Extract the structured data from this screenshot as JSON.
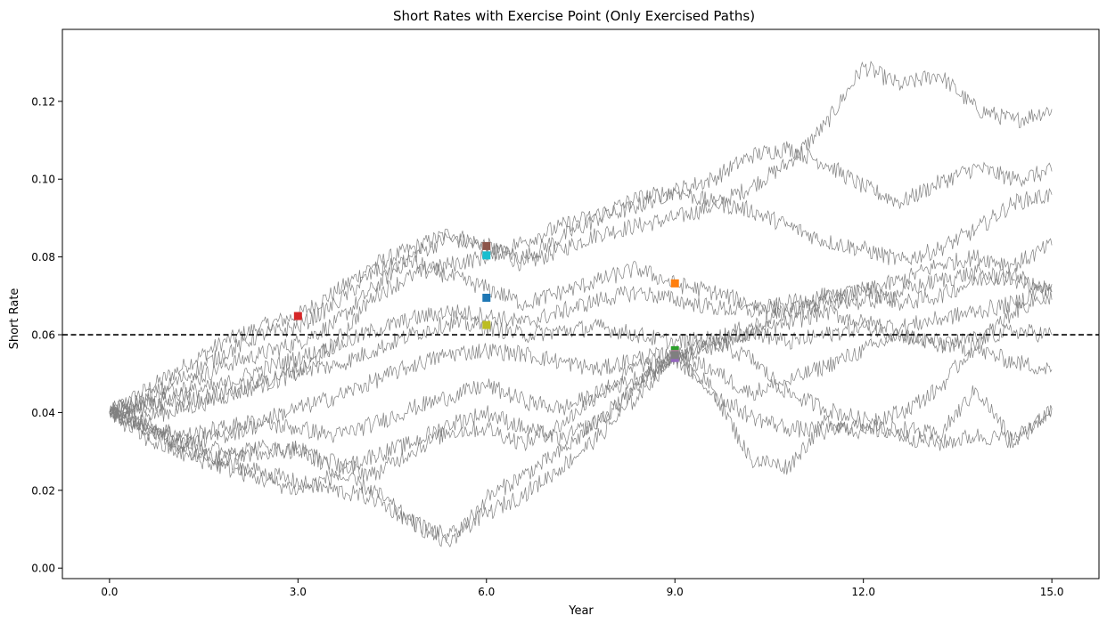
{
  "chart_data": {
    "type": "line",
    "title": "Short Rates with Exercise Point (Only Exercised Paths)",
    "xlabel": "Year",
    "ylabel": "Short Rate",
    "xlim": [
      -0.75,
      15.75
    ],
    "ylim": [
      -0.0027,
      0.1385
    ],
    "xticks": [
      0.0,
      3.0,
      6.0,
      9.0,
      12.0,
      15.0
    ],
    "xtick_labels": [
      "0.0",
      "3.0",
      "6.0",
      "9.0",
      "12.0",
      "15.0"
    ],
    "yticks": [
      0.0,
      0.02,
      0.04,
      0.06,
      0.08,
      0.1,
      0.12
    ],
    "ytick_labels": [
      "0.00",
      "0.02",
      "0.04",
      "0.06",
      "0.08",
      "0.10",
      "0.12"
    ],
    "grid": false,
    "legend": "none",
    "path_color": "#808080",
    "threshold": {
      "y": 0.06,
      "color": "#000000",
      "style": "dashed"
    },
    "paths": [
      {
        "x": [
          0,
          0.6,
          1.2,
          1.8,
          2.4,
          3,
          3.6,
          4.2,
          4.8,
          5.4,
          6,
          6.6,
          7.2,
          7.8,
          8.4,
          9,
          9.6,
          10.2,
          10.8,
          11.4,
          12,
          12.6,
          13.2,
          13.8,
          14.4,
          15
        ],
        "y": [
          0.04,
          0.046,
          0.052,
          0.058,
          0.062,
          0.065,
          0.071,
          0.078,
          0.082,
          0.086,
          0.083,
          0.078,
          0.082,
          0.086,
          0.088,
          0.09,
          0.093,
          0.098,
          0.104,
          0.114,
          0.129,
          0.124,
          0.127,
          0.118,
          0.115,
          0.118
        ]
      },
      {
        "x": [
          0,
          0.6,
          1.2,
          1.8,
          2.4,
          3,
          3.6,
          4.2,
          4.8,
          5.4,
          6,
          6.6,
          7.2,
          7.8,
          8.4,
          9,
          9.6,
          10.2,
          10.8,
          11.4,
          12,
          12.6,
          13.2,
          13.8,
          14.4,
          15
        ],
        "y": [
          0.04,
          0.043,
          0.047,
          0.052,
          0.055,
          0.058,
          0.063,
          0.072,
          0.08,
          0.085,
          0.082,
          0.08,
          0.085,
          0.09,
          0.093,
          0.097,
          0.1,
          0.106,
          0.108,
          0.104,
          0.098,
          0.094,
          0.099,
          0.103,
          0.1,
          0.102
        ]
      },
      {
        "x": [
          0,
          0.6,
          1.2,
          1.8,
          2.4,
          3,
          3.6,
          4.2,
          4.8,
          5.4,
          6,
          6.6,
          7.2,
          7.8,
          8.4,
          9,
          9.6,
          10.2,
          10.8,
          11.4,
          12,
          12.6,
          13.2,
          13.8,
          14.4,
          15
        ],
        "y": [
          0.04,
          0.039,
          0.041,
          0.044,
          0.047,
          0.05,
          0.058,
          0.07,
          0.075,
          0.078,
          0.08,
          0.084,
          0.088,
          0.091,
          0.095,
          0.097,
          0.094,
          0.092,
          0.088,
          0.084,
          0.082,
          0.079,
          0.082,
          0.087,
          0.094,
          0.096
        ]
      },
      {
        "x": [
          0,
          0.6,
          1.2,
          1.8,
          2.4,
          3,
          3.6,
          4.2,
          4.8,
          5.4,
          6,
          6.6,
          7.2,
          7.8,
          8.4,
          9,
          9.6,
          10.2,
          10.8,
          11.4,
          12,
          12.6,
          13.2,
          13.8,
          14.4,
          15
        ],
        "y": [
          0.04,
          0.044,
          0.049,
          0.055,
          0.06,
          0.062,
          0.068,
          0.076,
          0.079,
          0.075,
          0.072,
          0.068,
          0.071,
          0.074,
          0.077,
          0.073,
          0.071,
          0.068,
          0.066,
          0.068,
          0.071,
          0.074,
          0.078,
          0.08,
          0.078,
          0.083
        ]
      },
      {
        "x": [
          0,
          0.6,
          1.2,
          1.8,
          2.4,
          3,
          3.6,
          4.2,
          4.8,
          5.4,
          6,
          6.6,
          7.2,
          7.8,
          8.4,
          9,
          9.6,
          10.2,
          10.8,
          11.4,
          12,
          12.6,
          13.2,
          13.8,
          14.4,
          15
        ],
        "y": [
          0.04,
          0.042,
          0.045,
          0.047,
          0.051,
          0.054,
          0.057,
          0.061,
          0.064,
          0.066,
          0.065,
          0.063,
          0.066,
          0.069,
          0.071,
          0.069,
          0.067,
          0.066,
          0.068,
          0.07,
          0.068,
          0.071,
          0.074,
          0.076,
          0.074,
          0.071
        ]
      },
      {
        "x": [
          0,
          0.6,
          1.2,
          1.8,
          2.4,
          3,
          3.6,
          4.2,
          4.8,
          5.4,
          6,
          6.6,
          7.2,
          7.8,
          8.4,
          9,
          9.6,
          10.2,
          10.8,
          11.4,
          12,
          12.6,
          13.2,
          13.8,
          14.4,
          15
        ],
        "y": [
          0.04,
          0.041,
          0.043,
          0.045,
          0.048,
          0.051,
          0.052,
          0.056,
          0.06,
          0.063,
          0.062,
          0.06,
          0.061,
          0.062,
          0.06,
          0.058,
          0.059,
          0.062,
          0.066,
          0.069,
          0.072,
          0.068,
          0.07,
          0.074,
          0.076,
          0.069
        ]
      },
      {
        "x": [
          0,
          0.6,
          1.2,
          1.8,
          2.4,
          3,
          3.6,
          4.2,
          4.8,
          5.4,
          6,
          6.6,
          7.2,
          7.8,
          8.4,
          9,
          9.6,
          10.2,
          10.8,
          11.4,
          12,
          12.6,
          13.2,
          13.8,
          14.4,
          15
        ],
        "y": [
          0.04,
          0.037,
          0.034,
          0.036,
          0.038,
          0.041,
          0.044,
          0.048,
          0.052,
          0.055,
          0.056,
          0.055,
          0.053,
          0.051,
          0.054,
          0.055,
          0.058,
          0.06,
          0.063,
          0.066,
          0.063,
          0.062,
          0.064,
          0.066,
          0.068,
          0.073
        ]
      },
      {
        "x": [
          0,
          0.6,
          1.2,
          1.8,
          2.4,
          3,
          3.6,
          4.2,
          4.8,
          5.4,
          6,
          6.6,
          7.2,
          7.8,
          8.4,
          9,
          9.6,
          10.2,
          10.8,
          11.4,
          12,
          12.6,
          13.2,
          13.8,
          14.4,
          15
        ],
        "y": [
          0.04,
          0.036,
          0.032,
          0.034,
          0.037,
          0.036,
          0.034,
          0.037,
          0.041,
          0.044,
          0.047,
          0.043,
          0.041,
          0.045,
          0.049,
          0.054,
          0.057,
          0.061,
          0.058,
          0.06,
          0.062,
          0.06,
          0.057,
          0.059,
          0.061,
          0.06
        ]
      },
      {
        "x": [
          0,
          0.6,
          1.2,
          1.8,
          2.4,
          3,
          3.6,
          4.2,
          4.8,
          5.4,
          6,
          6.6,
          7.2,
          7.8,
          8.4,
          9,
          9.6,
          10.2,
          10.8,
          11.4,
          12,
          12.6,
          13.2,
          13.8,
          14.4,
          15
        ],
        "y": [
          0.04,
          0.035,
          0.03,
          0.028,
          0.03,
          0.031,
          0.025,
          0.029,
          0.032,
          0.037,
          0.04,
          0.036,
          0.033,
          0.038,
          0.047,
          0.055,
          0.051,
          0.045,
          0.048,
          0.052,
          0.056,
          0.06,
          0.058,
          0.056,
          0.053,
          0.051
        ]
      },
      {
        "x": [
          0,
          0.6,
          1.2,
          1.8,
          2.4,
          3,
          3.6,
          4.2,
          4.8,
          5.4,
          6,
          6.6,
          7.2,
          7.8,
          8.4,
          9,
          9.6,
          10.2,
          10.8,
          11.4,
          12,
          12.6,
          13.2,
          13.8,
          14.4,
          15
        ],
        "y": [
          0.04,
          0.037,
          0.033,
          0.03,
          0.031,
          0.03,
          0.027,
          0.024,
          0.03,
          0.035,
          0.036,
          0.032,
          0.037,
          0.045,
          0.052,
          0.054,
          0.045,
          0.039,
          0.036,
          0.035,
          0.037,
          0.034,
          0.032,
          0.034,
          0.033,
          0.041
        ]
      },
      {
        "x": [
          0,
          0.6,
          1.2,
          1.8,
          2.4,
          3,
          3.6,
          4.2,
          4.8,
          5.4,
          6,
          6.6,
          7.2,
          7.8,
          8.4,
          9,
          9.6,
          10.2,
          10.8,
          11.4,
          12,
          12.6,
          13.2,
          13.8,
          14.4,
          15
        ],
        "y": [
          0.04,
          0.033,
          0.029,
          0.026,
          0.023,
          0.02,
          0.024,
          0.02,
          0.012,
          0.006,
          0.018,
          0.024,
          0.03,
          0.038,
          0.046,
          0.055,
          0.058,
          0.054,
          0.045,
          0.041,
          0.038,
          0.04,
          0.046,
          0.058,
          0.066,
          0.071
        ]
      },
      {
        "x": [
          0,
          0.6,
          1.2,
          1.8,
          2.4,
          3,
          3.6,
          4.2,
          4.8,
          5.4,
          6,
          6.6,
          7.2,
          7.8,
          8.4,
          9,
          9.6,
          10.2,
          10.8,
          11.4,
          12,
          12.6,
          13.2,
          13.8,
          14.4,
          15
        ],
        "y": [
          0.04,
          0.036,
          0.031,
          0.027,
          0.025,
          0.022,
          0.02,
          0.018,
          0.012,
          0.008,
          0.014,
          0.019,
          0.026,
          0.034,
          0.044,
          0.055,
          0.046,
          0.028,
          0.026,
          0.038,
          0.035,
          0.036,
          0.034,
          0.046,
          0.032,
          0.041
        ]
      }
    ],
    "exercise_points": [
      {
        "x": 3.0,
        "y": 0.0648,
        "color": "#d62728"
      },
      {
        "x": 6.0,
        "y": 0.0828,
        "color": "#8c564b"
      },
      {
        "x": 6.0,
        "y": 0.0804,
        "color": "#17becf"
      },
      {
        "x": 6.0,
        "y": 0.0695,
        "color": "#1f77b4"
      },
      {
        "x": 6.0,
        "y": 0.0625,
        "color": "#bcbd22"
      },
      {
        "x": 9.0,
        "y": 0.0732,
        "color": "#ff7f0e"
      },
      {
        "x": 9.0,
        "y": 0.056,
        "color": "#2ca02c"
      },
      {
        "x": 9.0,
        "y": 0.055,
        "color": "#e377c2"
      },
      {
        "x": 9.0,
        "y": 0.054,
        "color": "#9467bd"
      },
      {
        "x": 9.0,
        "y": 0.0548,
        "color": "#7f7f7f"
      }
    ]
  }
}
